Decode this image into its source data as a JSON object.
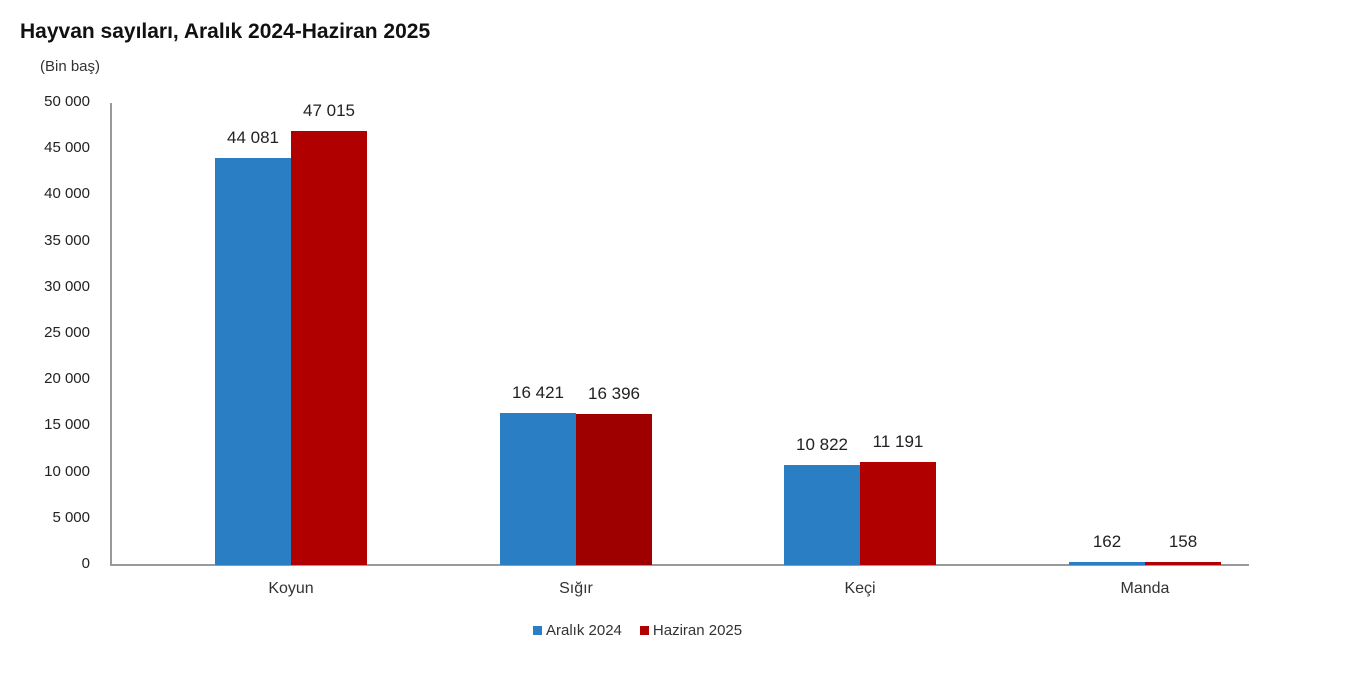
{
  "title": "Hayvan sayıları, Aralık 2024-Haziran 2025",
  "unit_label": "(Bin baş)",
  "y_ticks": [
    "50 000",
    "45 000",
    "40 000",
    "35 000",
    "30 000",
    "25 000",
    "20 000",
    "15 000",
    "10 000",
    "5 000",
    "0"
  ],
  "categories": [
    "Koyun",
    "Sığır",
    "Keçi",
    "Manda"
  ],
  "legend": [
    {
      "label": "Aralık 2024",
      "color": "#2a7fc4"
    },
    {
      "label": "Haziran 2025",
      "color": "#b00000"
    }
  ],
  "value_labels": {
    "aralik": [
      "44 081",
      "16 421",
      "10 822",
      "162"
    ],
    "haziran": [
      "47 015",
      "16 396",
      "11 191",
      "158"
    ]
  },
  "chart_data": {
    "type": "bar",
    "title": "Hayvan sayıları, Aralık 2024-Haziran 2025",
    "ylabel": "(Bin baş)",
    "xlabel": "",
    "categories": [
      "Koyun",
      "Sığır",
      "Keçi",
      "Manda"
    ],
    "series": [
      {
        "name": "Aralık 2024",
        "color": "#2a7fc4",
        "values": [
          44081,
          16421,
          10822,
          162
        ]
      },
      {
        "name": "Haziran 2025",
        "color": "#b00000",
        "values": [
          47015,
          16396,
          11191,
          158
        ]
      }
    ],
    "ylim": [
      0,
      50000
    ],
    "y_tick_step": 5000,
    "grid": false,
    "legend_position": "bottom"
  }
}
